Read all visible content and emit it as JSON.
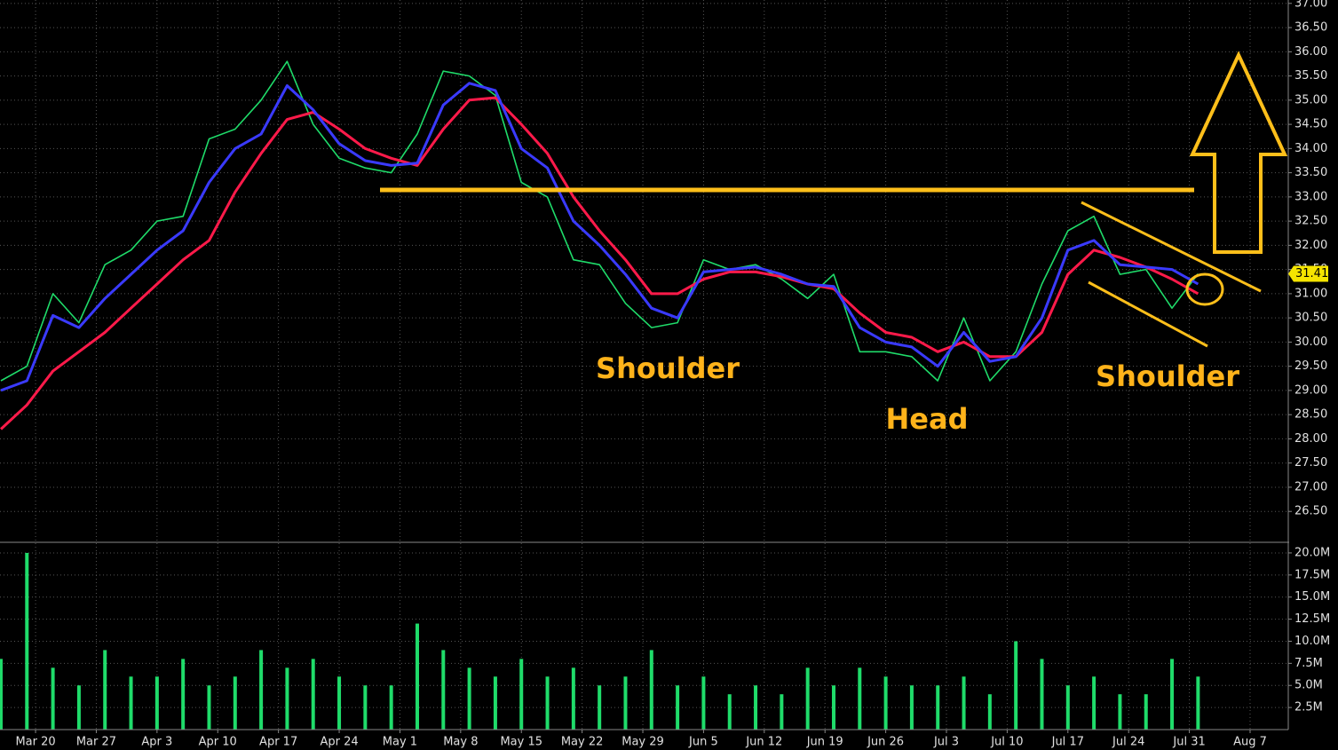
{
  "chart_data": [
    {
      "type": "line",
      "x": [
        -4,
        -1,
        2,
        5,
        8,
        11,
        14,
        17,
        20,
        23,
        26,
        29,
        32,
        35,
        38,
        41,
        44,
        47,
        50,
        53,
        56,
        59,
        62,
        65,
        68,
        71,
        74,
        77,
        80,
        83,
        86,
        89,
        92,
        95,
        98,
        101,
        104,
        107,
        110,
        113,
        116,
        119,
        122,
        125,
        128,
        131,
        134
      ],
      "xlim": [
        -4.1,
        144.3
      ],
      "ylim": [
        25.88,
        37.07
      ],
      "yticks": [
        {
          "value": 26.5,
          "label": "26.50"
        },
        {
          "value": 27,
          "label": "27.00"
        },
        {
          "value": 27.5,
          "label": "27.50"
        },
        {
          "value": 28,
          "label": "28.00"
        },
        {
          "value": 28.5,
          "label": "28.50"
        },
        {
          "value": 29,
          "label": "29.00"
        },
        {
          "value": 29.5,
          "label": "29.50"
        },
        {
          "value": 30,
          "label": "30.00"
        },
        {
          "value": 30.5,
          "label": "30.50"
        },
        {
          "value": 31,
          "label": "31.00"
        },
        {
          "value": 31.5,
          "label": "31.50"
        },
        {
          "value": 32,
          "label": "32.00"
        },
        {
          "value": 32.5,
          "label": "32.50"
        },
        {
          "value": 33,
          "label": "33.00"
        },
        {
          "value": 33.5,
          "label": "33.50"
        },
        {
          "value": 34,
          "label": "34.00"
        },
        {
          "value": 34.5,
          "label": "34.50"
        },
        {
          "value": 35,
          "label": "35.00"
        },
        {
          "value": 35.5,
          "label": "35.50"
        },
        {
          "value": 36,
          "label": "36.00"
        },
        {
          "value": 36.5,
          "label": "36.50"
        },
        {
          "value": 37,
          "label": "37.00"
        }
      ],
      "grid": true,
      "series": [
        {
          "color": "#1fdc6a",
          "values": [
            29.2,
            29.5,
            31.0,
            30.4,
            31.6,
            31.9,
            32.5,
            32.6,
            34.2,
            34.4,
            35.0,
            35.8,
            34.5,
            33.8,
            33.6,
            33.5,
            34.3,
            35.6,
            35.5,
            35.1,
            33.3,
            33.0,
            31.7,
            31.6,
            30.8,
            30.3,
            30.4,
            31.7,
            31.5,
            31.6,
            31.3,
            30.9,
            31.4,
            29.8,
            29.8,
            29.7,
            29.2,
            30.5,
            29.2,
            29.8,
            31.2,
            32.3,
            32.6,
            31.4,
            31.5,
            30.7,
            31.41
          ]
        },
        {
          "color": "#ff1a4a",
          "values": [
            28.2,
            28.7,
            29.4,
            29.8,
            30.2,
            30.7,
            31.2,
            31.7,
            32.1,
            33.1,
            33.9,
            34.6,
            34.75,
            34.4,
            34.0,
            33.8,
            33.65,
            34.4,
            35.0,
            35.05,
            34.5,
            33.9,
            33.0,
            32.3,
            31.7,
            31.0,
            31.0,
            31.3,
            31.45,
            31.45,
            31.35,
            31.2,
            31.1,
            30.6,
            30.2,
            30.1,
            29.8,
            30.0,
            29.7,
            29.7,
            30.2,
            31.4,
            31.9,
            31.75,
            31.55,
            31.3,
            31.0
          ]
        },
        {
          "color": "#3a3aff",
          "values": [
            29.0,
            29.2,
            30.55,
            30.3,
            30.9,
            31.4,
            31.9,
            32.3,
            33.3,
            34.0,
            34.3,
            35.3,
            34.8,
            34.1,
            33.75,
            33.65,
            33.7,
            34.9,
            35.35,
            35.2,
            34.0,
            33.6,
            32.5,
            32.0,
            31.4,
            30.7,
            30.5,
            31.45,
            31.5,
            31.55,
            31.4,
            31.2,
            31.15,
            30.3,
            30.0,
            29.9,
            29.5,
            30.2,
            29.6,
            29.7,
            30.5,
            31.9,
            32.1,
            31.6,
            31.55,
            31.5,
            31.2
          ]
        }
      ],
      "annotations": [
        "Shoulder",
        "Head",
        "Shoulder"
      ]
    },
    {
      "type": "bar",
      "x": [
        -4,
        -1,
        2,
        5,
        8,
        11,
        14,
        17,
        20,
        23,
        26,
        29,
        32,
        35,
        38,
        41,
        44,
        47,
        50,
        53,
        56,
        59,
        62,
        65,
        68,
        71,
        74,
        77,
        80,
        83,
        86,
        89,
        92,
        95,
        98,
        101,
        104,
        107,
        110,
        113,
        116,
        119,
        122,
        125,
        128,
        131,
        134
      ],
      "xlim": [
        -4.1,
        144.3
      ],
      "xticks": [
        {
          "value": 0,
          "label": "Mar 20"
        },
        {
          "value": 7,
          "label": "Mar 27"
        },
        {
          "value": 14,
          "label": "Apr 3"
        },
        {
          "value": 21,
          "label": "Apr 10"
        },
        {
          "value": 28,
          "label": "Apr 17"
        },
        {
          "value": 35,
          "label": "Apr 24"
        },
        {
          "value": 42,
          "label": "May 1"
        },
        {
          "value": 49,
          "label": "May 8"
        },
        {
          "value": 56,
          "label": "May 15"
        },
        {
          "value": 63,
          "label": "May 22"
        },
        {
          "value": 70,
          "label": "May 29"
        },
        {
          "value": 77,
          "label": "Jun 5"
        },
        {
          "value": 84,
          "label": "Jun 12"
        },
        {
          "value": 91,
          "label": "Jun 19"
        },
        {
          "value": 98,
          "label": "Jun 26"
        },
        {
          "value": 105,
          "label": "Jul 3"
        },
        {
          "value": 112,
          "label": "Jul 10"
        },
        {
          "value": 119,
          "label": "Jul 17"
        },
        {
          "value": 126,
          "label": "Jul 24"
        },
        {
          "value": 133,
          "label": "Jul 31"
        },
        {
          "value": 140,
          "label": "Aug 7"
        }
      ],
      "ylim": [
        0,
        21.1
      ],
      "yticks": [
        {
          "value": 2.5,
          "label": "2.5M"
        },
        {
          "value": 5,
          "label": "5.0M"
        },
        {
          "value": 7.5,
          "label": "7.5M"
        },
        {
          "value": 10,
          "label": "10.0M"
        },
        {
          "value": 12.5,
          "label": "12.5M"
        },
        {
          "value": 15,
          "label": "15.0M"
        },
        {
          "value": 17.5,
          "label": "17.5M"
        },
        {
          "value": 20,
          "label": "20.0M"
        }
      ],
      "color": "#1fdc6a",
      "values": [
        8,
        20,
        7,
        5,
        9,
        6,
        6,
        8,
        5,
        6,
        9,
        7,
        8,
        6,
        5,
        5,
        12,
        9,
        7,
        6,
        8,
        6,
        7,
        5,
        6,
        9,
        5,
        6,
        4,
        5,
        4,
        7,
        5,
        7,
        6,
        5,
        5,
        6,
        4,
        10,
        8,
        5,
        6,
        4,
        4,
        8,
        6
      ]
    }
  ]
}
